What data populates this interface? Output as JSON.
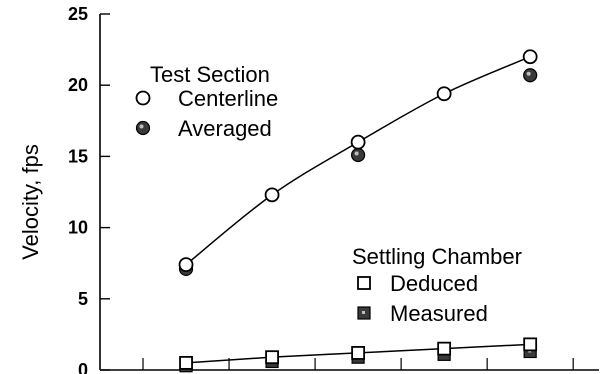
{
  "chart_data": {
    "type": "line",
    "ylabel": "Velocity, fps",
    "ylim": [
      0,
      25
    ],
    "yticks": [
      "0",
      "5",
      "10",
      "15",
      "20",
      "25"
    ],
    "xlim": [
      0,
      5.8
    ],
    "grid": false,
    "series": [
      {
        "group": "Test Section",
        "name": "Centerline",
        "marker": "open-circle",
        "fit_line": true,
        "points": [
          [
            1,
            7.4
          ],
          [
            2,
            12.3
          ],
          [
            3,
            16.0
          ],
          [
            4,
            19.4
          ],
          [
            5,
            22.0
          ]
        ]
      },
      {
        "group": "Test Section",
        "name": "Averaged",
        "marker": "filled-circle",
        "fit_line": false,
        "points": [
          [
            1,
            7.1
          ],
          [
            3,
            15.1
          ],
          [
            5,
            20.7
          ]
        ]
      },
      {
        "group": "Settling Chamber",
        "name": "Deduced",
        "marker": "open-square",
        "fit_line": true,
        "points": [
          [
            1,
            0.5
          ],
          [
            2,
            0.9
          ],
          [
            3,
            1.2
          ],
          [
            4,
            1.5
          ],
          [
            5,
            1.8
          ]
        ]
      },
      {
        "group": "Settling Chamber",
        "name": "Measured",
        "marker": "filled-square",
        "fit_line": false,
        "points": [
          [
            1,
            0.3
          ],
          [
            2,
            0.6
          ],
          [
            3,
            0.9
          ],
          [
            4,
            1.1
          ],
          [
            5,
            1.3
          ]
        ]
      }
    ],
    "legend": {
      "groups": [
        {
          "title": "Test Section",
          "entries": [
            "Centerline",
            "Averaged"
          ],
          "placement": "upper-left"
        },
        {
          "title": "Settling Chamber",
          "entries": [
            "Deduced",
            "Measured"
          ],
          "placement": "lower-right"
        }
      ]
    }
  }
}
